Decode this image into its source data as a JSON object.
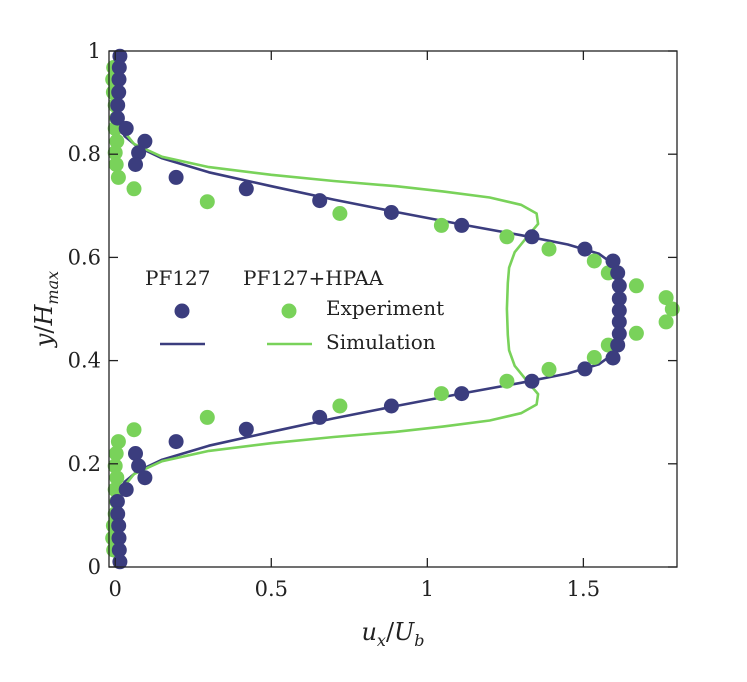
{
  "chart_data": {
    "type": "scatter",
    "title": "",
    "xlabel": {
      "main": "u",
      "sub": "x",
      "sep": "/",
      "main2": "U",
      "sub2": "b"
    },
    "ylabel": {
      "main": "y",
      "sep": "/",
      "main2": "H",
      "sub2": "max"
    },
    "xlim": [
      -0.02,
      1.8
    ],
    "ylim": [
      0,
      1
    ],
    "xticks": [
      0,
      0.5,
      1,
      1.5
    ],
    "xtick_labels": [
      "0",
      "0.5",
      "1",
      "1.5"
    ],
    "yticks": [
      0,
      0.2,
      0.4,
      0.6,
      0.8,
      1
    ],
    "ytick_labels": [
      "0",
      "0.2",
      "0.4",
      "0.6",
      "0.8",
      "1"
    ],
    "colors": {
      "pf127": "#3b3d7e",
      "hpaa": "#79d25a",
      "axis": "#222222"
    },
    "legend": {
      "position": "center-left",
      "headers": [
        "PF127",
        "PF127+HPAA"
      ],
      "rows": [
        "Experiment",
        "Simulation"
      ]
    },
    "series": [
      {
        "name": "PF127 Experiment",
        "kind": "marker",
        "color": "#3b3d7e",
        "points": [
          [
            0.015,
            0.99
          ],
          [
            0.013,
            0.968
          ],
          [
            0.012,
            0.945
          ],
          [
            0.011,
            0.92
          ],
          [
            0.008,
            0.895
          ],
          [
            0.007,
            0.87
          ],
          [
            0.035,
            0.85
          ],
          [
            0.095,
            0.825
          ],
          [
            0.075,
            0.803
          ],
          [
            0.065,
            0.78
          ],
          [
            0.195,
            0.755
          ],
          [
            0.42,
            0.733
          ],
          [
            0.655,
            0.71
          ],
          [
            0.885,
            0.687
          ],
          [
            1.11,
            0.662
          ],
          [
            1.335,
            0.64
          ],
          [
            1.505,
            0.616
          ],
          [
            1.595,
            0.593
          ],
          [
            1.61,
            0.57
          ],
          [
            1.615,
            0.545
          ],
          [
            1.615,
            0.52
          ],
          [
            1.615,
            0.497
          ],
          [
            1.615,
            0.475
          ],
          [
            1.615,
            0.452
          ],
          [
            1.61,
            0.43
          ],
          [
            1.595,
            0.405
          ],
          [
            1.505,
            0.384
          ],
          [
            1.335,
            0.36
          ],
          [
            1.11,
            0.336
          ],
          [
            0.885,
            0.312
          ],
          [
            0.655,
            0.29
          ],
          [
            0.42,
            0.267
          ],
          [
            0.195,
            0.243
          ],
          [
            0.065,
            0.22
          ],
          [
            0.075,
            0.196
          ],
          [
            0.095,
            0.173
          ],
          [
            0.035,
            0.15
          ],
          [
            0.007,
            0.127
          ],
          [
            0.008,
            0.103
          ],
          [
            0.011,
            0.08
          ],
          [
            0.012,
            0.056
          ],
          [
            0.013,
            0.033
          ],
          [
            0.015,
            0.01
          ]
        ]
      },
      {
        "name": "PF127+HPAA Experiment",
        "kind": "marker",
        "color": "#79d25a",
        "points": [
          [
            -0.005,
            0.968
          ],
          [
            -0.008,
            0.945
          ],
          [
            -0.006,
            0.92
          ],
          [
            0.0,
            0.895
          ],
          [
            0.005,
            0.87
          ],
          [
            0.0,
            0.85
          ],
          [
            0.005,
            0.825
          ],
          [
            0.0,
            0.803
          ],
          [
            0.003,
            0.78
          ],
          [
            0.01,
            0.755
          ],
          [
            0.06,
            0.733
          ],
          [
            0.295,
            0.708
          ],
          [
            0.72,
            0.685
          ],
          [
            1.045,
            0.662
          ],
          [
            1.255,
            0.64
          ],
          [
            1.39,
            0.616
          ],
          [
            1.535,
            0.593
          ],
          [
            1.58,
            0.57
          ],
          [
            1.67,
            0.545
          ],
          [
            1.765,
            0.522
          ],
          [
            1.785,
            0.5
          ],
          [
            1.765,
            0.475
          ],
          [
            1.67,
            0.453
          ],
          [
            1.58,
            0.43
          ],
          [
            1.535,
            0.406
          ],
          [
            1.39,
            0.383
          ],
          [
            1.255,
            0.36
          ],
          [
            1.045,
            0.336
          ],
          [
            0.72,
            0.312
          ],
          [
            0.295,
            0.29
          ],
          [
            0.06,
            0.266
          ],
          [
            0.01,
            0.243
          ],
          [
            0.003,
            0.22
          ],
          [
            0.0,
            0.196
          ],
          [
            0.005,
            0.173
          ],
          [
            0.0,
            0.15
          ],
          [
            0.005,
            0.127
          ],
          [
            0.0,
            0.103
          ],
          [
            -0.006,
            0.08
          ],
          [
            -0.008,
            0.056
          ],
          [
            -0.005,
            0.033
          ]
        ]
      },
      {
        "name": "PF127 Simulation",
        "kind": "line",
        "color": "#3b3d7e",
        "points": [
          [
            0.0,
            1.0
          ],
          [
            0.002,
            0.9
          ],
          [
            0.01,
            0.86
          ],
          [
            0.03,
            0.835
          ],
          [
            0.07,
            0.815
          ],
          [
            0.15,
            0.792
          ],
          [
            0.3,
            0.765
          ],
          [
            0.5,
            0.738
          ],
          [
            0.7,
            0.712
          ],
          [
            0.9,
            0.688
          ],
          [
            1.1,
            0.665
          ],
          [
            1.3,
            0.643
          ],
          [
            1.45,
            0.625
          ],
          [
            1.55,
            0.607
          ],
          [
            1.6,
            0.585
          ],
          [
            1.615,
            0.56
          ],
          [
            1.618,
            0.53
          ],
          [
            1.62,
            0.5
          ],
          [
            1.618,
            0.47
          ],
          [
            1.615,
            0.44
          ],
          [
            1.6,
            0.415
          ],
          [
            1.55,
            0.393
          ],
          [
            1.45,
            0.375
          ],
          [
            1.3,
            0.357
          ],
          [
            1.1,
            0.335
          ],
          [
            0.9,
            0.312
          ],
          [
            0.7,
            0.288
          ],
          [
            0.5,
            0.262
          ],
          [
            0.3,
            0.235
          ],
          [
            0.15,
            0.208
          ],
          [
            0.07,
            0.185
          ],
          [
            0.03,
            0.165
          ],
          [
            0.01,
            0.14
          ],
          [
            0.002,
            0.1
          ],
          [
            0.0,
            0.0
          ]
        ]
      },
      {
        "name": "PF127+HPAA Simulation",
        "kind": "line",
        "color": "#79d25a",
        "points": [
          [
            0.0,
            1.0
          ],
          [
            0.0,
            0.95
          ],
          [
            0.005,
            0.88
          ],
          [
            0.02,
            0.85
          ],
          [
            0.06,
            0.82
          ],
          [
            0.15,
            0.795
          ],
          [
            0.3,
            0.775
          ],
          [
            0.5,
            0.76
          ],
          [
            0.7,
            0.748
          ],
          [
            0.9,
            0.738
          ],
          [
            1.05,
            0.728
          ],
          [
            1.2,
            0.716
          ],
          [
            1.3,
            0.702
          ],
          [
            1.35,
            0.685
          ],
          [
            1.355,
            0.665
          ],
          [
            1.32,
            0.64
          ],
          [
            1.28,
            0.61
          ],
          [
            1.262,
            0.58
          ],
          [
            1.258,
            0.55
          ],
          [
            1.255,
            0.5
          ],
          [
            1.258,
            0.45
          ],
          [
            1.262,
            0.42
          ],
          [
            1.28,
            0.39
          ],
          [
            1.32,
            0.36
          ],
          [
            1.355,
            0.335
          ],
          [
            1.35,
            0.315
          ],
          [
            1.3,
            0.298
          ],
          [
            1.2,
            0.284
          ],
          [
            1.05,
            0.272
          ],
          [
            0.9,
            0.262
          ],
          [
            0.7,
            0.252
          ],
          [
            0.5,
            0.24
          ],
          [
            0.3,
            0.225
          ],
          [
            0.15,
            0.205
          ],
          [
            0.06,
            0.18
          ],
          [
            0.02,
            0.15
          ],
          [
            0.005,
            0.12
          ],
          [
            0.0,
            0.05
          ],
          [
            0.0,
            0.0
          ]
        ]
      }
    ]
  }
}
